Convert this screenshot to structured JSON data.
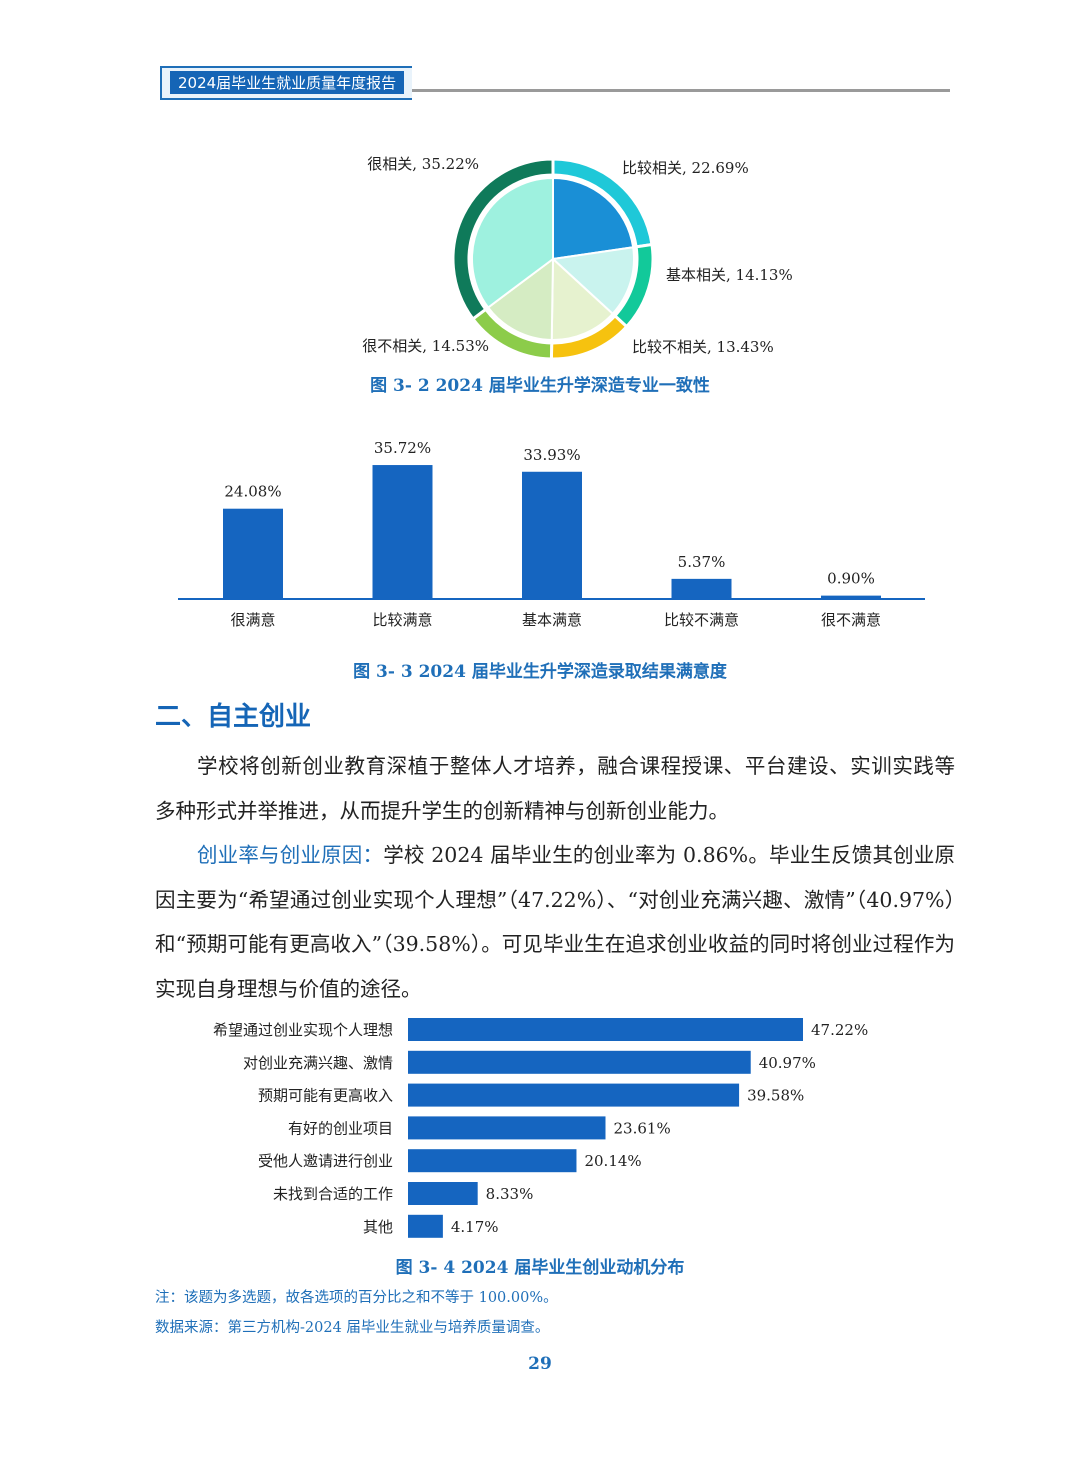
{
  "header": {
    "title": "2024届毕业生就业质量年度报告"
  },
  "pie_chart": {
    "caption": "图 3- 2  2024 届毕业生升学深造专业一致性",
    "chart_data": {
      "type": "pie",
      "title": "",
      "slices": [
        {
          "label": "比较相关, 22.69%",
          "value": 22.69,
          "inner": "#1a8fd6",
          "outer": "#1fc8d8"
        },
        {
          "label": "基本相关, 14.13%",
          "value": 14.13,
          "inner": "#c9f3ee",
          "outer": "#12c99a"
        },
        {
          "label": "比较不相关, 13.43%",
          "value": 13.43,
          "inner": "#e6f2cf",
          "outer": "#f6c20f"
        },
        {
          "label": "很不相关, 14.53%",
          "value": 14.53,
          "inner": "#d5ecc3",
          "outer": "#8ccc4a"
        },
        {
          "label": "很相关, 35.22%",
          "value": 35.22,
          "inner": "#9ef1df",
          "outer": "#0f7a5a"
        }
      ]
    }
  },
  "bar_chart": {
    "caption": "图 3- 3  2024 届毕业生升学深造录取结果满意度",
    "chart_data": {
      "type": "bar",
      "title": "",
      "categories": [
        "很满意",
        "比较满意",
        "基本满意",
        "比较不满意",
        "很不满意"
      ],
      "values": [
        24.08,
        35.72,
        33.93,
        5.37,
        0.9
      ],
      "value_labels": [
        "24.08%",
        "35.72%",
        "33.93%",
        "5.37%",
        "0.90%"
      ],
      "ylim": [
        0,
        40
      ],
      "color": "#1565c0"
    }
  },
  "section": {
    "title": "二、自主创业"
  },
  "paragraphs": {
    "p1": "学校将创新创业教育深植于整体人才培养，融合课程授课、平台建设、实训实践等多种形式并举推进，从而提升学生的创新精神与创新创业能力。",
    "p2_lead": "创业率与创业原因：",
    "p2_body": "学校 2024 届毕业生的创业率为 0.86%。毕业生反馈其创业原因主要为“希望通过创业实现个人理想”（47.22%）、“对创业充满兴趣、激情”（40.97%）和“预期可能有更高收入”（39.58%）。可见毕业生在追求创业收益的同时将创业过程作为实现自身理想与价值的途径。"
  },
  "hbar_chart": {
    "caption": "图 3- 4  2024 届毕业生创业动机分布",
    "chart_data": {
      "type": "bar",
      "orientation": "horizontal",
      "title": "",
      "categories": [
        "希望通过创业实现个人理想",
        "对创业充满兴趣、激情",
        "预期可能有更高收入",
        "有好的创业项目",
        "受他人邀请进行创业",
        "未找到合适的工作",
        "其他"
      ],
      "values": [
        47.22,
        40.97,
        39.58,
        23.61,
        20.14,
        8.33,
        4.17
      ],
      "value_labels": [
        "47.22%",
        "40.97%",
        "39.58%",
        "23.61%",
        "20.14%",
        "8.33%",
        "4.17%"
      ],
      "xlim": [
        0,
        50
      ],
      "color": "#1565c0"
    }
  },
  "notes": {
    "note": "注：该题为多选题，故各选项的百分比之和不等于 100.00%。",
    "source": "数据来源：第三方机构-2024 届毕业生就业与培养质量调查。"
  },
  "page": {
    "number": "29"
  }
}
